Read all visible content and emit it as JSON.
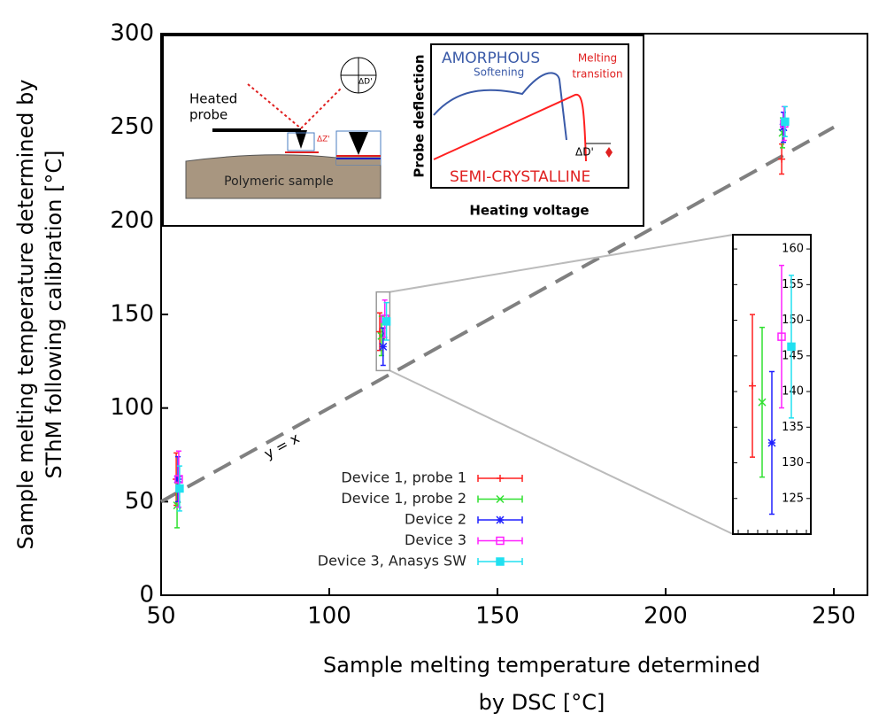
{
  "chart_data": {
    "type": "errorbar",
    "y_label": [
      "Sample melting temperature determined by",
      "SThM following calibration [°C]"
    ],
    "x_label": [
      "Sample melting temperature determined",
      "by DSC [°C]"
    ],
    "xlim": [
      50,
      260
    ],
    "ylim": [
      0,
      300
    ],
    "xticks": [
      50,
      100,
      150,
      200,
      250
    ],
    "yticks": [
      0,
      50,
      100,
      150,
      200,
      250,
      300
    ],
    "reference_line": {
      "label": "y = x",
      "color": "#808080"
    },
    "series": [
      {
        "name": "Device 1, probe 1",
        "color": "#ff2020",
        "marker": "plus",
        "x": [
          54.5,
          115,
          234.5
        ],
        "values": [
          62,
          140.8,
          233
        ],
        "errors": [
          14,
          10,
          8
        ]
      },
      {
        "name": "Device 1, probe 2",
        "color": "#30e030",
        "marker": "cross",
        "x": [
          54.75,
          115.5,
          234.75
        ],
        "values": [
          48,
          138.5,
          247
        ],
        "errors": [
          12,
          10.5,
          8
        ]
      },
      {
        "name": "Device 2",
        "color": "#2020ff",
        "marker": "star",
        "x": [
          55,
          116,
          235
        ],
        "values": [
          62,
          132.8,
          250
        ],
        "errors": [
          12,
          10,
          8
        ]
      },
      {
        "name": "Device 3",
        "color": "#ff20ff",
        "marker": "open-square",
        "x": [
          55.25,
          116.5,
          235.25
        ],
        "values": [
          62,
          147.7,
          252
        ],
        "errors": [
          15,
          10,
          9
        ]
      },
      {
        "name": "Device 3, Anasys SW",
        "color": "#20e0f0",
        "marker": "square",
        "x": [
          55.5,
          117,
          235.5
        ],
        "values": [
          57,
          146.3,
          253
        ],
        "errors": [
          12,
          10,
          8
        ]
      }
    ],
    "zoom_inset": {
      "point_index": 1,
      "xlim": [
        114,
        118
      ],
      "ylim": [
        120,
        162
      ],
      "yticks": [
        125,
        130,
        135,
        140,
        145,
        150,
        155,
        160
      ]
    }
  },
  "schematic": {
    "heated_probe": [
      "Heated",
      "probe"
    ],
    "sample": "Polymeric sample",
    "delta_z": "ΔZ'",
    "delta_d_detector": "ΔD'",
    "y_axis": "Probe deflection",
    "x_axis": "Heating voltage",
    "amorphous": "AMORPHOUS",
    "softening": "Softening",
    "melting": [
      "Melting",
      "transition"
    ],
    "semi_crystalline": "SEMI-CRYSTALLINE",
    "delta_d": "ΔD'"
  }
}
